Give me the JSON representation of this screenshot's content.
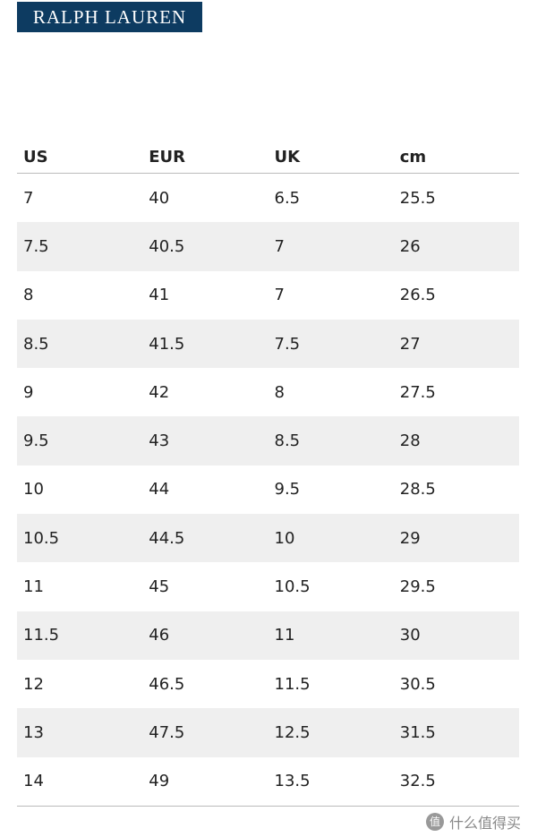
{
  "header": {
    "logo": "RALPH LAUREN"
  },
  "table": {
    "columns": [
      "US",
      "EUR",
      "UK",
      "cm"
    ],
    "rows": [
      [
        "7",
        "40",
        "6.5",
        "25.5"
      ],
      [
        "7.5",
        "40.5",
        "7",
        "26"
      ],
      [
        "8",
        "41",
        "7",
        "26.5"
      ],
      [
        "8.5",
        "41.5",
        "7.5",
        "27"
      ],
      [
        "9",
        "42",
        "8",
        "27.5"
      ],
      [
        "9.5",
        "43",
        "8.5",
        "28"
      ],
      [
        "10",
        "44",
        "9.5",
        "28.5"
      ],
      [
        "10.5",
        "44.5",
        "10",
        "29"
      ],
      [
        "11",
        "45",
        "10.5",
        "29.5"
      ],
      [
        "11.5",
        "46",
        "11",
        "30"
      ],
      [
        "12",
        "46.5",
        "11.5",
        "30.5"
      ],
      [
        "13",
        "47.5",
        "12.5",
        "31.5"
      ],
      [
        "14",
        "49",
        "13.5",
        "32.5"
      ]
    ]
  },
  "watermark": {
    "icon": "值",
    "text": "什么值得买"
  }
}
